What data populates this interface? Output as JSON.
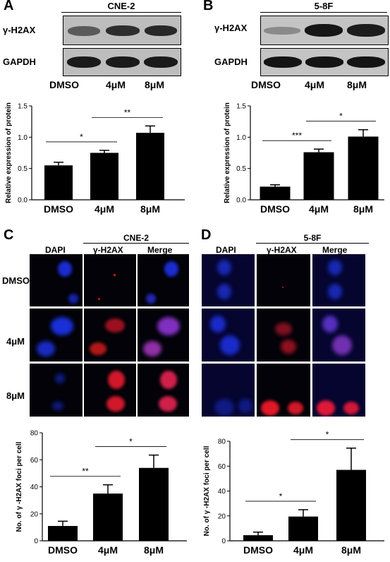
{
  "panels": {
    "A": {
      "letter": "A",
      "cell_line": "CNE-2"
    },
    "B": {
      "letter": "B",
      "cell_line": "5-8F"
    },
    "C": {
      "letter": "C",
      "cell_line": "CNE-2"
    },
    "D": {
      "letter": "D",
      "cell_line": "5-8F"
    }
  },
  "blot": {
    "rows": [
      "γ-H2AX",
      "GAPDH"
    ],
    "lanes": [
      "DMSO",
      "4μM",
      "8μM"
    ]
  },
  "micro": {
    "columns": [
      "DAPI",
      "γ-H2AX",
      "Merge"
    ],
    "rows": [
      "DMSO",
      "4μM",
      "8μM"
    ]
  },
  "chart_data": [
    {
      "type": "bar",
      "id": "A",
      "categories": [
        "DMSO",
        "4μM",
        "8μM"
      ],
      "values": [
        0.55,
        0.75,
        1.07
      ],
      "errors": [
        0.05,
        0.04,
        0.11
      ],
      "ylabel": "Relative expression of protein",
      "ylim": [
        0,
        1.5
      ],
      "yticks": [
        "0.0",
        "0.5",
        "1.0",
        "1.5"
      ],
      "significance": [
        {
          "from": 0,
          "to": 1,
          "label": "*"
        },
        {
          "from": 1,
          "to": 2,
          "label": "**"
        }
      ]
    },
    {
      "type": "bar",
      "id": "B",
      "categories": [
        "DMSO",
        "4μM",
        "8μM"
      ],
      "values": [
        0.21,
        0.76,
        1.01
      ],
      "errors": [
        0.03,
        0.05,
        0.11
      ],
      "ylabel": "Relative expression of protein",
      "ylim": [
        0,
        1.5
      ],
      "yticks": [
        "0.0",
        "0.5",
        "1.0",
        "1.5"
      ],
      "significance": [
        {
          "from": 0,
          "to": 1,
          "label": "***"
        },
        {
          "from": 1,
          "to": 2,
          "label": "*"
        }
      ]
    },
    {
      "type": "bar",
      "id": "C",
      "categories": [
        "DMSO",
        "4μM",
        "8μM"
      ],
      "values": [
        11,
        35,
        54
      ],
      "errors": [
        3.5,
        6.5,
        9.5
      ],
      "ylabel": "No. of γ -H2AX foci per cell",
      "ylim": [
        0,
        80
      ],
      "yticks": [
        "0",
        "20",
        "40",
        "60",
        "80"
      ],
      "significance": [
        {
          "from": 0,
          "to": 1,
          "label": "**"
        },
        {
          "from": 1,
          "to": 2,
          "label": "*"
        }
      ]
    },
    {
      "type": "bar",
      "id": "D",
      "categories": [
        "DMSO",
        "4μM",
        "8μM"
      ],
      "values": [
        4.5,
        19.5,
        57
      ],
      "errors": [
        2.5,
        5.5,
        17.5
      ],
      "ylabel": "No. of γ -H2AX foci per cell",
      "ylim": [
        0,
        80
      ],
      "yticks": [
        "0",
        "20",
        "40",
        "60",
        "80"
      ],
      "significance": [
        {
          "from": 0,
          "to": 1,
          "label": "*"
        },
        {
          "from": 1,
          "to": 2,
          "label": "*"
        }
      ]
    }
  ]
}
